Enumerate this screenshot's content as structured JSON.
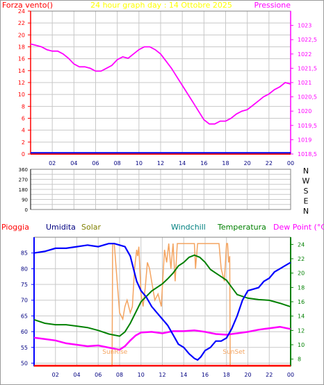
{
  "chart_data": [
    {
      "type": "line",
      "title": "24 hour graph day : 14 Ottobre 2025",
      "left_axis_label": "Forza vento()",
      "right_axis_label": "Pressione",
      "x_ticks": [
        "02",
        "04",
        "06",
        "08",
        "10",
        "12",
        "14",
        "16",
        "18",
        "20",
        "22",
        "00"
      ],
      "y_left_ticks": [
        "0",
        "2",
        "4",
        "6",
        "8",
        "10",
        "12",
        "14",
        "16",
        "18",
        "20",
        "22",
        "24"
      ],
      "y_right_ticks": [
        "1018,5",
        "1019",
        "1019,5",
        "1020",
        "1020,5",
        "1021",
        "1021,5",
        "1022",
        "1022,5",
        "1023"
      ],
      "ylim_left": [
        0,
        24
      ],
      "ylim_right": [
        1018.5,
        1023.5
      ],
      "grid": true,
      "series": [
        {
          "axis": "right",
          "color": "#ff00ff",
          "x": [
            0,
            0.5,
            1,
            1.5,
            2,
            2.5,
            3,
            3.5,
            4,
            4.5,
            5,
            5.5,
            6,
            6.5,
            7,
            7.5,
            8,
            8.5,
            9,
            9.5,
            10,
            10.5,
            11,
            11.5,
            12,
            12.5,
            13,
            13.5,
            14,
            14.5,
            15,
            15.5,
            16,
            16.5,
            17,
            17.5,
            18,
            18.5,
            19,
            19.5,
            20,
            20.5,
            21,
            21.5,
            22,
            22.5,
            23,
            23.5,
            24
          ],
          "values": [
            1022.35,
            1022.3,
            1022.25,
            1022.15,
            1022.1,
            1022.1,
            1022.0,
            1021.85,
            1021.65,
            1021.55,
            1021.55,
            1021.5,
            1021.4,
            1021.4,
            1021.5,
            1021.6,
            1021.8,
            1021.9,
            1021.85,
            1022.0,
            1022.15,
            1022.25,
            1022.25,
            1022.15,
            1022.0,
            1021.75,
            1021.5,
            1021.2,
            1020.9,
            1020.6,
            1020.3,
            1020.0,
            1019.7,
            1019.55,
            1019.55,
            1019.65,
            1019.65,
            1019.75,
            1019.9,
            1020.0,
            1020.05,
            1020.2,
            1020.35,
            1020.5,
            1020.6,
            1020.75,
            1020.85,
            1021.0,
            1020.95
          ]
        },
        {
          "axis": "left",
          "color": "#ff0000",
          "x": [
            0,
            24
          ],
          "values": [
            0,
            0
          ]
        },
        {
          "axis": "left",
          "color": "#0000ff",
          "x": [
            0,
            24
          ],
          "values": [
            0.2,
            0.2
          ]
        }
      ]
    },
    {
      "type": "scatter",
      "y_ticks": [
        "360",
        "315",
        "270",
        "225",
        "180",
        "135",
        "90",
        "45",
        "0"
      ],
      "compass": [
        "N",
        "W",
        "S",
        "E",
        "N"
      ],
      "ylim": [
        0,
        360
      ],
      "grid": true,
      "series": []
    },
    {
      "type": "line",
      "legend": [
        "Pioggia",
        "Umidita",
        "Solar",
        "Windchill",
        "Temperatura",
        "Dew Point (°C)"
      ],
      "legend_colors": [
        "#ff0000",
        "#000080",
        "#808000",
        "#008080",
        "#008000",
        "#ff00ff"
      ],
      "x_ticks": [
        "02",
        "04",
        "06",
        "08",
        "10",
        "12",
        "14",
        "16",
        "18",
        "20",
        "22",
        "00"
      ],
      "y_left_ticks": [
        "50",
        "55",
        "60",
        "65",
        "70",
        "75",
        "80",
        "85"
      ],
      "y_right_ticks": [
        "8",
        "10",
        "12",
        "14",
        "16",
        "18",
        "20",
        "22",
        "24"
      ],
      "annotations": [
        {
          "text": "SunRise",
          "x": 7.3
        },
        {
          "text": "SunSet",
          "x": 18.3
        }
      ],
      "ylim_left": [
        49,
        90
      ],
      "ylim_right": [
        7,
        25
      ],
      "grid": true,
      "series": [
        {
          "name": "Umidita",
          "axis": "left",
          "color": "#0000ff",
          "x": [
            0,
            1,
            2,
            3,
            4,
            5,
            6,
            7,
            7.5,
            8,
            8.5,
            9,
            9.3,
            9.6,
            10,
            10.5,
            11,
            11.5,
            12,
            12.5,
            13,
            13.5,
            14,
            14.5,
            15,
            15.3,
            15.6,
            16,
            16.5,
            17,
            17.5,
            18,
            18.5,
            19,
            19.5,
            20,
            21,
            21.5,
            22,
            22.5,
            23,
            23.5,
            24
          ],
          "values": [
            85,
            85.5,
            86.5,
            86.5,
            87,
            87.5,
            87,
            88,
            88,
            87.5,
            87,
            84,
            80,
            76,
            73,
            71,
            68,
            66,
            64,
            62,
            59,
            56,
            55,
            53,
            51.5,
            51,
            52,
            54,
            55,
            57,
            57,
            58,
            61,
            65,
            70,
            73,
            74,
            76,
            77,
            79,
            80,
            81,
            82
          ]
        },
        {
          "name": "Temperatura",
          "axis": "right",
          "color": "#008000",
          "x": [
            0,
            1,
            2,
            3,
            4,
            5,
            6,
            7,
            8,
            8.5,
            9,
            9.5,
            10,
            11,
            12,
            12.5,
            13,
            13.5,
            14,
            14.5,
            15,
            15.5,
            16,
            16.5,
            17,
            17.5,
            18,
            18.5,
            19,
            20,
            21,
            22,
            23,
            24
          ],
          "values": [
            13.5,
            13,
            12.8,
            12.8,
            12.6,
            12.4,
            12,
            11.5,
            11.2,
            11.8,
            13,
            14.5,
            16,
            17.5,
            18.5,
            19.2,
            20,
            21,
            21.5,
            22.2,
            22.5,
            22.2,
            21.5,
            20.5,
            20,
            19.5,
            19,
            18,
            17,
            16.5,
            16.3,
            16.2,
            15.8,
            15.3
          ]
        },
        {
          "name": "Dew Point (°C)",
          "axis": "right",
          "color": "#ff00ff",
          "x": [
            0,
            1,
            2,
            3,
            4,
            5,
            6,
            7,
            8,
            8.5,
            9,
            9.5,
            10,
            11,
            12,
            13,
            14,
            15,
            16,
            17,
            18,
            19,
            20,
            21,
            22,
            23,
            24
          ],
          "values": [
            11,
            10.8,
            10.6,
            10.2,
            10,
            9.8,
            9.9,
            9.6,
            9.3,
            9.8,
            10.6,
            11.3,
            11.7,
            11.8,
            11.6,
            11.9,
            11.9,
            12,
            11.8,
            11.5,
            11.4,
            11.6,
            11.8,
            12.1,
            12.3,
            12.5,
            12.2
          ]
        },
        {
          "name": "Solar",
          "axis": "left",
          "color": "#f4a460",
          "x": [
            0,
            7.3,
            7.35,
            7.5,
            8,
            8.3,
            8.5,
            8.7,
            9,
            9.2,
            9.4,
            9.6,
            9.7,
            9.8,
            10,
            10.2,
            10.4,
            10.6,
            10.8,
            11,
            11.3,
            11.6,
            11.9,
            12,
            12.2,
            12.4,
            12.6,
            12.8,
            13,
            13.2,
            13.4,
            13.6,
            14,
            14.5,
            15,
            15.1,
            15.2,
            15.3,
            15.5,
            16,
            16.5,
            17,
            17.3,
            17.5,
            17.8,
            18,
            18.1,
            18.2,
            18.3,
            18.35,
            24
          ],
          "values": [
            49,
            49,
            88,
            88,
            66,
            64,
            68,
            70,
            66,
            68,
            80,
            86,
            84,
            87,
            72,
            68,
            74,
            82,
            80,
            76,
            70,
            72,
            68,
            74,
            86,
            82,
            88,
            80,
            88,
            76,
            88,
            88,
            88,
            88,
            88,
            80,
            84,
            88,
            88,
            88,
            88,
            88,
            88,
            80,
            76,
            88,
            88,
            82,
            84,
            49,
            49
          ]
        },
        {
          "name": "Pioggia",
          "axis": "left",
          "color": "#ff0000",
          "x": [
            0,
            24
          ],
          "values": [
            49.2,
            49.2
          ]
        }
      ]
    }
  ]
}
